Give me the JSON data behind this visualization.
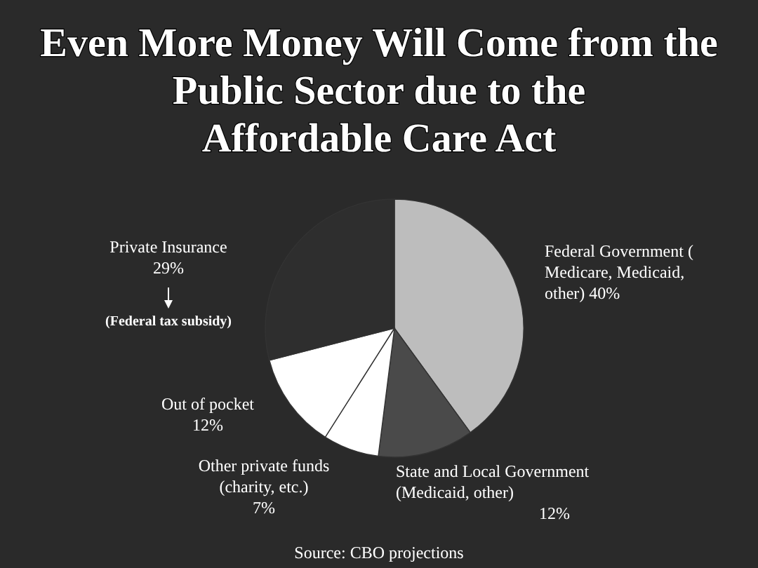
{
  "chart_data": {
    "type": "pie",
    "title": "Even More Money Will Come from the Public Sector due to the Affordable Care Act",
    "categories": [
      "Federal Government ( Medicare, Medicaid, other)",
      "State and Local Government (Medicaid, other)",
      "Other private funds (charity, etc.)",
      "Out of pocket",
      "Private Insurance"
    ],
    "values": [
      40,
      12,
      7,
      12,
      29
    ],
    "value_labels": [
      "40%",
      "12%",
      "7%",
      "12%",
      "29%"
    ],
    "colors": [
      "#bdbdbd",
      "#4a4a4a",
      "#ffffff",
      "#ffffff",
      "#2e2e2e"
    ],
    "annotations": [
      "(Federal tax subsidy)",
      "Source: CBO projections"
    ]
  }
}
